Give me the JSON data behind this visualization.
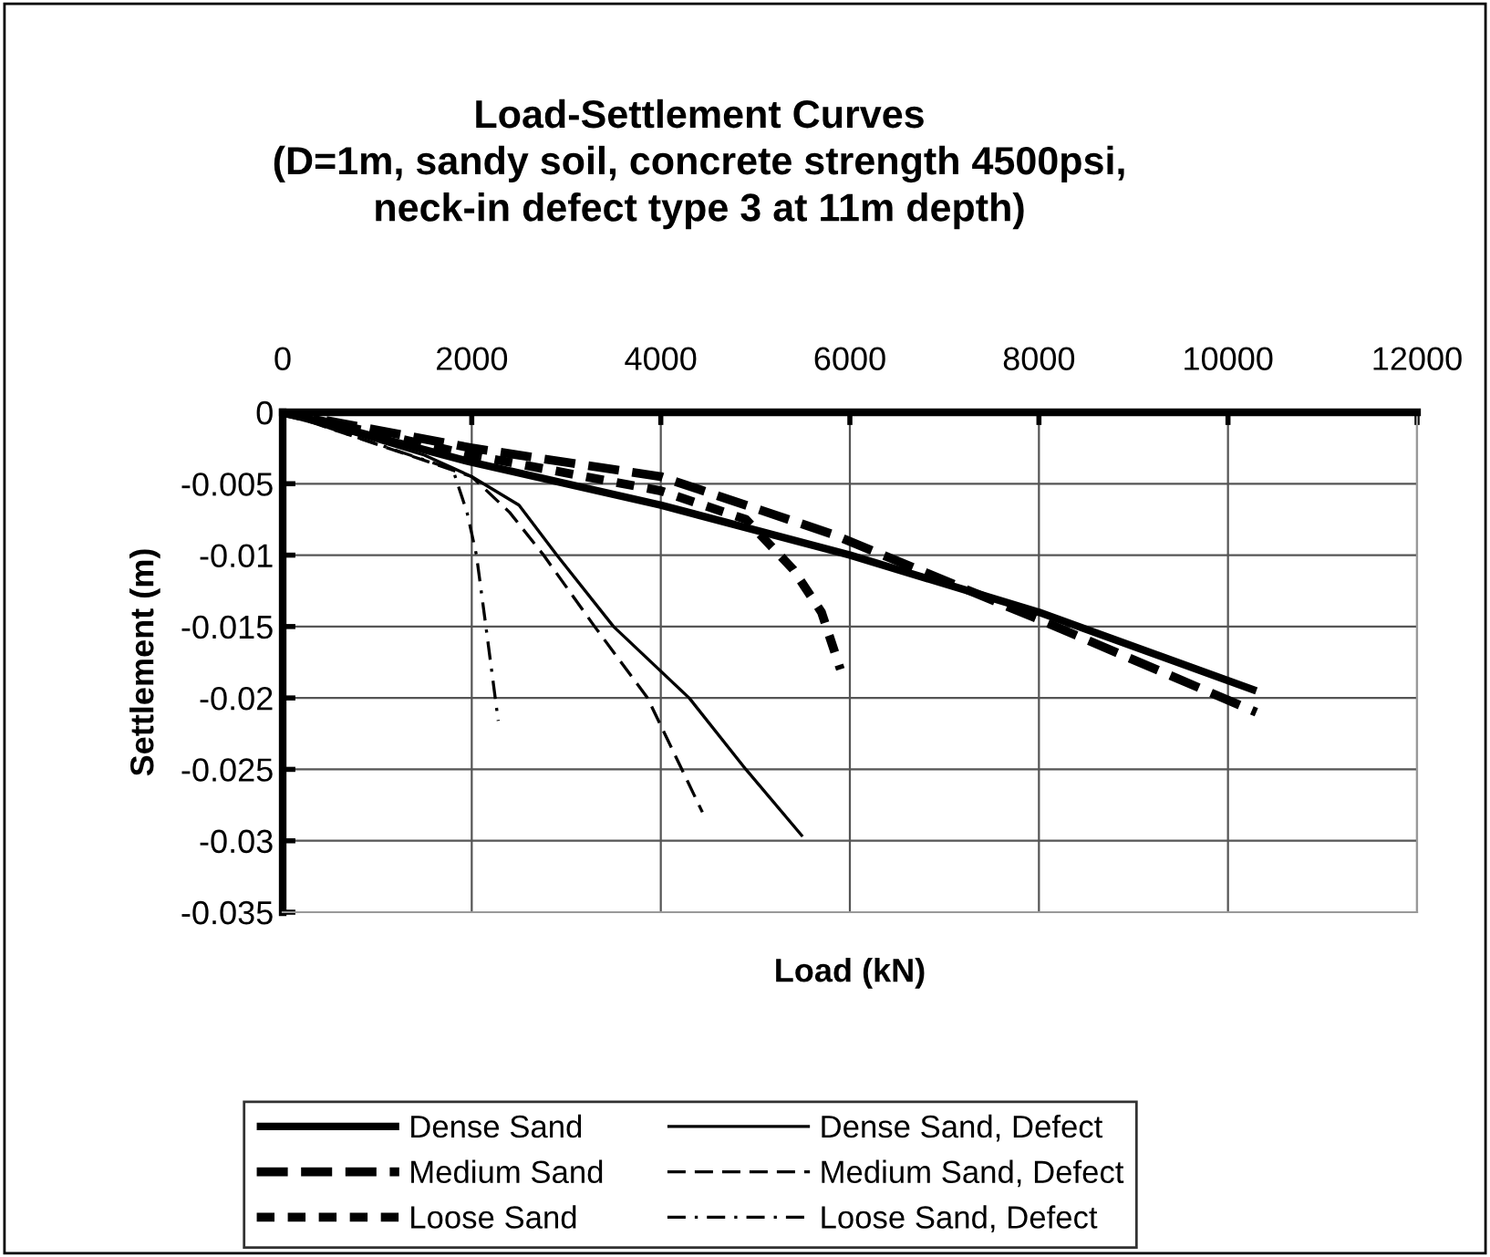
{
  "chart_data": {
    "type": "line",
    "title": "Load-Settlement Curves\n(D=1m, sandy soil, concrete strength 4500psi,\nneck-in defect type 3 at 11m depth)",
    "xlabel": "Load (kN)",
    "ylabel": "Settlement (m)",
    "xlim": [
      0,
      12000
    ],
    "xticks": [
      0,
      2000,
      4000,
      6000,
      8000,
      10000,
      12000
    ],
    "ylim": [
      -0.035,
      0
    ],
    "yticks": [
      -0.035,
      -0.03,
      -0.025,
      -0.02,
      -0.015,
      -0.01,
      -0.005,
      0
    ],
    "grid": true,
    "legend": "bottom",
    "marker": "none",
    "series": [
      {
        "name": "Dense Sand",
        "color": "#000000",
        "line_style": "solid",
        "x": [
          0,
          2000,
          4000,
          6000,
          8000,
          10300
        ],
        "values": [
          0,
          -0.0035,
          -0.0065,
          -0.01,
          -0.014,
          -0.0195
        ]
      },
      {
        "name": "Medium Sand",
        "color": "#000000",
        "line_style": "dashed",
        "x": [
          0,
          2000,
          4000,
          5800,
          8000,
          10300
        ],
        "values": [
          0,
          -0.0025,
          -0.0045,
          -0.0085,
          -0.0145,
          -0.021
        ]
      },
      {
        "name": "Loose Sand",
        "color": "#000000",
        "line_style": "dashed",
        "x": [
          0,
          2000,
          4000,
          4900,
          5400,
          5700,
          5900
        ],
        "values": [
          0,
          -0.003,
          -0.0055,
          -0.0075,
          -0.011,
          -0.014,
          -0.018
        ]
      },
      {
        "name": "Dense Sand, Defect",
        "color": "#000000",
        "line_style": "solid",
        "x": [
          0,
          1500,
          2000,
          2500,
          2900,
          3500,
          4300,
          4900,
          5500
        ],
        "values": [
          0,
          -0.003,
          -0.0045,
          -0.0065,
          -0.01,
          -0.015,
          -0.02,
          -0.025,
          -0.0297
        ]
      },
      {
        "name": "Medium Sand, Defect",
        "color": "#000000",
        "line_style": "dashed",
        "x": [
          0,
          2000,
          2400,
          2760,
          3300,
          3860,
          4440
        ],
        "values": [
          0,
          -0.0045,
          -0.007,
          -0.01,
          -0.015,
          -0.02,
          -0.028
        ]
      },
      {
        "name": "Loose Sand, Defect",
        "color": "#000000",
        "line_style": "dashdot",
        "x": [
          0,
          1800,
          1950,
          2050,
          2150,
          2280
        ],
        "values": [
          0,
          -0.004,
          -0.007,
          -0.01,
          -0.015,
          -0.0216
        ]
      }
    ]
  }
}
